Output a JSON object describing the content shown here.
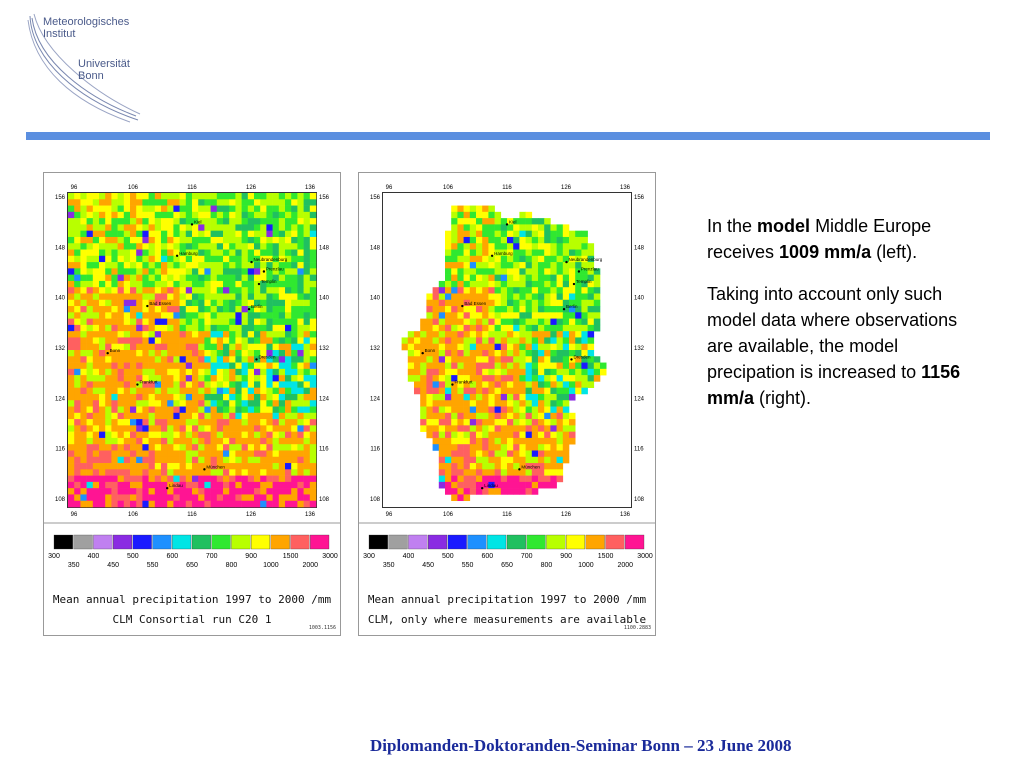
{
  "logo": {
    "line1": "Meteorologisches",
    "line2": "Institut",
    "line3": "Universität",
    "line4": "Bonn"
  },
  "maps": [
    {
      "caption1": "Mean annual precipitation 1997 to 2000 /mm",
      "caption2": "CLM Consortial run C20 1",
      "run_id": "1003.1156",
      "mask": "full"
    },
    {
      "caption1": "Mean annual precipitation 1997 to 2000 /mm",
      "caption2": "CLM, only where measurements are available",
      "run_id": "1100.2883",
      "mask": "germany"
    }
  ],
  "axis": {
    "x_ticks": [
      "96",
      "106",
      "116",
      "126",
      "136"
    ],
    "y_ticks": [
      "156",
      "148",
      "140",
      "132",
      "124",
      "116",
      "108"
    ]
  },
  "cities": [
    {
      "name": "Kiel",
      "col": 0.5,
      "row": 0.1
    },
    {
      "name": "Hamburg",
      "col": 0.44,
      "row": 0.2
    },
    {
      "name": "Neubrandenburg",
      "col": 0.74,
      "row": 0.22
    },
    {
      "name": "Prenzlau",
      "col": 0.79,
      "row": 0.25
    },
    {
      "name": "Templin",
      "col": 0.77,
      "row": 0.29
    },
    {
      "name": "Bad Essen",
      "col": 0.32,
      "row": 0.36
    },
    {
      "name": "Berlin",
      "col": 0.73,
      "row": 0.37
    },
    {
      "name": "Dresden",
      "col": 0.76,
      "row": 0.53
    },
    {
      "name": "Bonn",
      "col": 0.16,
      "row": 0.51
    },
    {
      "name": "Frankfurt",
      "col": 0.28,
      "row": 0.61
    },
    {
      "name": "München",
      "col": 0.55,
      "row": 0.88
    },
    {
      "name": "Lindau",
      "col": 0.4,
      "row": 0.94
    }
  ],
  "legend": {
    "colors": [
      "#000000",
      "#a0a0a0",
      "#c080f0",
      "#8a2be2",
      "#1a1aff",
      "#1e90ff",
      "#00e5e5",
      "#20c060",
      "#30e830",
      "#b8ff00",
      "#ffff00",
      "#ffa500",
      "#ff6060",
      "#ff1493"
    ],
    "top_labels": [
      "300",
      "400",
      "500",
      "600",
      "700",
      "900",
      "1500",
      "3000"
    ],
    "bottom_labels": [
      "350",
      "450",
      "550",
      "650",
      "800",
      "1000",
      "2000"
    ]
  },
  "text": {
    "p1_pre": "In the ",
    "p1_bold1": "model",
    "p1_mid": " Middle Europe receives ",
    "p1_bold2": "1009 mm/a",
    "p1_post": " (left).",
    "p2_pre": "Taking into account only such model data where observations are available, the model precipation is increased to ",
    "p2_bold": "1156 mm/a",
    "p2_post": " (right)."
  },
  "footer": "Diplomanden-Doktoranden-Seminar Bonn – 23 June 2008"
}
